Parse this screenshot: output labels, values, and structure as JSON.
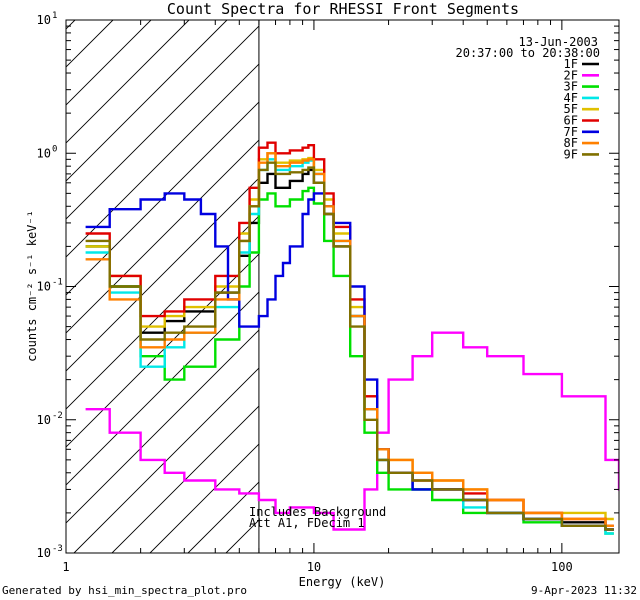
{
  "chart_data": {
    "type": "line",
    "title": "Count Spectra for RHESSI Front Segments",
    "xlabel": "Energy (keV)",
    "ylabel": "counts cm⁻² s⁻¹ keV⁻¹",
    "x_scale": "log",
    "y_scale": "log",
    "xlim": [
      1,
      170
    ],
    "ylim": [
      0.001,
      10
    ],
    "x_ticks": [
      {
        "v": 1,
        "label": "1"
      },
      {
        "v": 10,
        "label": "10"
      },
      {
        "v": 100,
        "label": "100"
      }
    ],
    "y_ticks": [
      {
        "v": 0.001,
        "base": "10",
        "exp": "-3"
      },
      {
        "v": 0.01,
        "base": "10",
        "exp": "-2"
      },
      {
        "v": 0.1,
        "base": "10",
        "exp": "-1"
      },
      {
        "v": 1,
        "base": "10",
        "exp": "0"
      },
      {
        "v": 10,
        "base": "10",
        "exp": "1"
      }
    ],
    "date": "13-Jun-2003",
    "time_range": "20:37:00 to 20:38:00",
    "hatched_region_max_energy": 6,
    "annotation_lines": [
      "Includes Background",
      "Att A1, FDecim 1"
    ],
    "series": [
      {
        "name": "1F",
        "color": "#000000",
        "x": [
          1.2,
          1.5,
          2,
          2.5,
          3,
          4,
          5,
          5.5,
          6,
          6.5,
          7,
          8,
          9,
          9.5,
          10,
          11,
          12,
          14,
          16,
          18,
          20,
          25,
          30,
          40,
          50,
          70,
          100,
          150
        ],
        "y": [
          0.2,
          0.1,
          0.045,
          0.055,
          0.065,
          0.09,
          0.17,
          0.3,
          0.6,
          0.7,
          0.55,
          0.62,
          0.7,
          0.75,
          0.6,
          0.35,
          0.2,
          0.06,
          0.012,
          0.005,
          0.004,
          0.003,
          0.003,
          0.0025,
          0.002,
          0.0018,
          0.0017,
          0.0015
        ]
      },
      {
        "name": "2F",
        "color": "#ff00ff",
        "x": [
          1.2,
          1.5,
          2,
          2.5,
          3,
          4,
          5,
          6,
          7,
          8,
          10,
          12,
          14,
          16,
          18,
          20,
          25,
          30,
          40,
          50,
          70,
          100,
          150,
          170
        ],
        "y": [
          0.012,
          0.008,
          0.005,
          0.004,
          0.0035,
          0.003,
          0.0028,
          0.0025,
          0.002,
          0.0022,
          0.002,
          0.0015,
          0.0015,
          0.003,
          0.008,
          0.02,
          0.03,
          0.045,
          0.035,
          0.03,
          0.022,
          0.015,
          0.005,
          0.003
        ]
      },
      {
        "name": "3F",
        "color": "#00e000",
        "x": [
          1.2,
          1.5,
          2,
          2.5,
          3,
          4,
          5,
          5.5,
          6,
          6.5,
          7,
          8,
          9,
          9.5,
          10,
          11,
          12,
          14,
          16,
          18,
          20,
          25,
          30,
          40,
          50,
          70,
          100,
          150
        ],
        "y": [
          0.2,
          0.1,
          0.03,
          0.02,
          0.025,
          0.04,
          0.1,
          0.18,
          0.45,
          0.5,
          0.4,
          0.45,
          0.52,
          0.55,
          0.42,
          0.22,
          0.12,
          0.03,
          0.008,
          0.004,
          0.003,
          0.003,
          0.0025,
          0.002,
          0.002,
          0.0017,
          0.0016,
          0.0014
        ]
      },
      {
        "name": "4F",
        "color": "#00e8e8",
        "x": [
          1.2,
          1.5,
          2,
          2.5,
          3,
          4,
          5,
          5.5,
          6,
          6.5,
          7,
          8,
          9,
          9.5,
          10,
          11,
          12,
          14,
          16,
          18,
          20,
          25,
          30,
          40,
          50,
          70,
          100,
          150
        ],
        "y": [
          0.18,
          0.09,
          0.025,
          0.035,
          0.045,
          0.07,
          0.18,
          0.35,
          0.75,
          0.9,
          0.75,
          0.8,
          0.85,
          0.88,
          0.7,
          0.4,
          0.22,
          0.06,
          0.012,
          0.005,
          0.004,
          0.003,
          0.003,
          0.0022,
          0.002,
          0.0018,
          0.0016,
          0.0014
        ]
      },
      {
        "name": "5F",
        "color": "#e0c000",
        "x": [
          1.2,
          1.5,
          2,
          2.5,
          3,
          4,
          5,
          5.5,
          6,
          6.5,
          7,
          8,
          9,
          9.5,
          10,
          11,
          12,
          14,
          16,
          18,
          20,
          25,
          30,
          40,
          50,
          70,
          100,
          150
        ],
        "y": [
          0.2,
          0.12,
          0.05,
          0.06,
          0.07,
          0.1,
          0.25,
          0.45,
          0.9,
          1.0,
          0.85,
          0.88,
          0.9,
          0.92,
          0.75,
          0.45,
          0.25,
          0.07,
          0.015,
          0.006,
          0.005,
          0.004,
          0.0035,
          0.003,
          0.0025,
          0.002,
          0.002,
          0.0018
        ]
      },
      {
        "name": "6F",
        "color": "#e00000",
        "x": [
          1.2,
          1.5,
          2,
          2.5,
          3,
          4,
          5,
          5.5,
          6,
          6.5,
          7,
          8,
          9,
          9.5,
          10,
          11,
          12,
          14,
          16,
          18,
          20,
          25,
          30,
          40,
          50,
          70,
          100,
          150
        ],
        "y": [
          0.25,
          0.12,
          0.06,
          0.065,
          0.08,
          0.12,
          0.3,
          0.55,
          1.1,
          1.2,
          1.0,
          1.05,
          1.1,
          1.15,
          0.9,
          0.5,
          0.28,
          0.08,
          0.015,
          0.006,
          0.004,
          0.0035,
          0.003,
          0.0028,
          0.0025,
          0.002,
          0.0018,
          0.0016
        ]
      },
      {
        "name": "7F",
        "color": "#0000e0",
        "x": [
          1.2,
          1.5,
          2,
          2.5,
          3,
          3.5,
          4,
          4.5,
          5,
          5.5,
          6,
          6.5,
          7,
          7.5,
          8,
          9,
          9.5,
          10,
          11,
          12,
          14,
          16,
          18,
          20,
          25,
          30,
          40,
          50,
          70,
          100,
          150
        ],
        "y": [
          0.28,
          0.38,
          0.45,
          0.5,
          0.45,
          0.35,
          0.2,
          0.08,
          0.05,
          0.05,
          0.06,
          0.08,
          0.12,
          0.15,
          0.2,
          0.35,
          0.45,
          0.5,
          0.4,
          0.3,
          0.1,
          0.02,
          0.006,
          0.004,
          0.003,
          0.003,
          0.0025,
          0.002,
          0.0018,
          0.0016,
          0.0015
        ]
      },
      {
        "name": "8F",
        "color": "#ff8000",
        "x": [
          1.2,
          1.5,
          2,
          2.5,
          3,
          4,
          5,
          5.5,
          6,
          6.5,
          7,
          8,
          9,
          9.5,
          10,
          11,
          12,
          14,
          16,
          18,
          20,
          25,
          30,
          40,
          50,
          70,
          100,
          150
        ],
        "y": [
          0.16,
          0.08,
          0.035,
          0.04,
          0.045,
          0.08,
          0.22,
          0.4,
          0.85,
          1.0,
          0.8,
          0.85,
          0.88,
          0.9,
          0.7,
          0.4,
          0.22,
          0.06,
          0.012,
          0.006,
          0.005,
          0.004,
          0.0035,
          0.003,
          0.0025,
          0.002,
          0.0018,
          0.0016
        ]
      },
      {
        "name": "9F",
        "color": "#807000",
        "x": [
          1.2,
          1.5,
          2,
          2.5,
          3,
          4,
          5,
          5.5,
          6,
          6.5,
          7,
          8,
          9,
          9.5,
          10,
          11,
          12,
          14,
          16,
          18,
          20,
          25,
          30,
          40,
          50,
          70,
          100,
          150
        ],
        "y": [
          0.22,
          0.1,
          0.04,
          0.045,
          0.05,
          0.09,
          0.22,
          0.4,
          0.75,
          0.85,
          0.7,
          0.72,
          0.75,
          0.78,
          0.6,
          0.35,
          0.2,
          0.05,
          0.01,
          0.005,
          0.004,
          0.0035,
          0.003,
          0.0025,
          0.002,
          0.0018,
          0.0016,
          0.0015
        ]
      }
    ]
  },
  "footer": {
    "left": "Generated by hsi_min_spectra_plot.pro",
    "right": "9-Apr-2023 11:32"
  }
}
